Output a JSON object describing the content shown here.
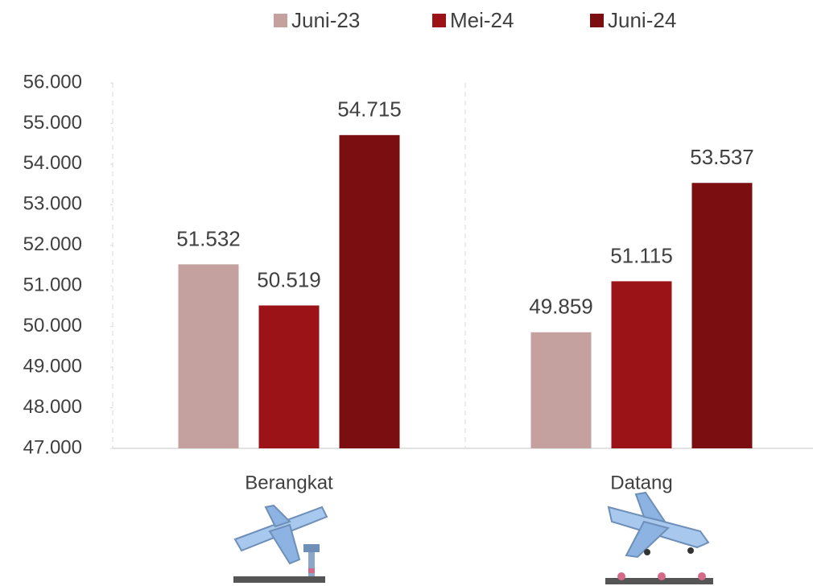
{
  "chart_data": {
    "type": "bar",
    "categories": [
      "Berangkat",
      "Datang"
    ],
    "series": [
      {
        "name": "Juni-23",
        "color": "#c4a09f",
        "values": [
          51532,
          49859
        ],
        "value_labels": [
          "51.532",
          "49.859"
        ]
      },
      {
        "name": "Mei-24",
        "color": "#9b1316",
        "values": [
          50519,
          51115
        ],
        "value_labels": [
          "50.519",
          "51.115"
        ]
      },
      {
        "name": "Juni-24",
        "color": "#7b0e10",
        "values": [
          54715,
          53537
        ],
        "value_labels": [
          "54.715",
          "53.537"
        ]
      }
    ],
    "ylim": [
      47000,
      56000
    ],
    "yticks": [
      {
        "value": 47000,
        "label": "47.000"
      },
      {
        "value": 48000,
        "label": "48.000"
      },
      {
        "value": 49000,
        "label": "49.000"
      },
      {
        "value": 50000,
        "label": "50.000"
      },
      {
        "value": 51000,
        "label": "51.000"
      },
      {
        "value": 52000,
        "label": "52.000"
      },
      {
        "value": 53000,
        "label": "53.000"
      },
      {
        "value": 54000,
        "label": "54.000"
      },
      {
        "value": 55000,
        "label": "55.000"
      },
      {
        "value": 56000,
        "label": "56.000"
      }
    ],
    "legend": "top"
  }
}
